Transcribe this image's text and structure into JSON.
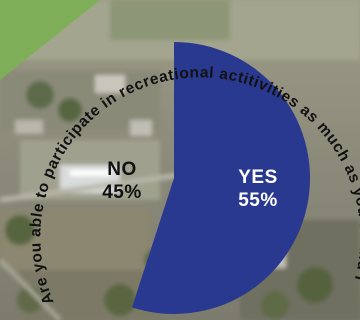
{
  "question": "Are you able to participate in recreational actitivities as much as you would like?",
  "colors": {
    "yes_slice": "#2a3990",
    "no_slice": "#6d6a5e",
    "yes_text": "#ffffff",
    "no_text": "#111111",
    "question_text": "#111111",
    "corner_accent": "#7fae58"
  },
  "chart_data": {
    "type": "pie",
    "question": "Are you able to participate in recreational actitivities as much as you would like?",
    "slices": [
      {
        "label": "YES",
        "percent_label": "55%",
        "value": 55,
        "color": "#2a3990"
      },
      {
        "label": "NO",
        "percent_label": "45%",
        "value": 45,
        "color": null
      }
    ],
    "background": "aerial photograph of a town",
    "legend": "none (labels inside slices)"
  }
}
